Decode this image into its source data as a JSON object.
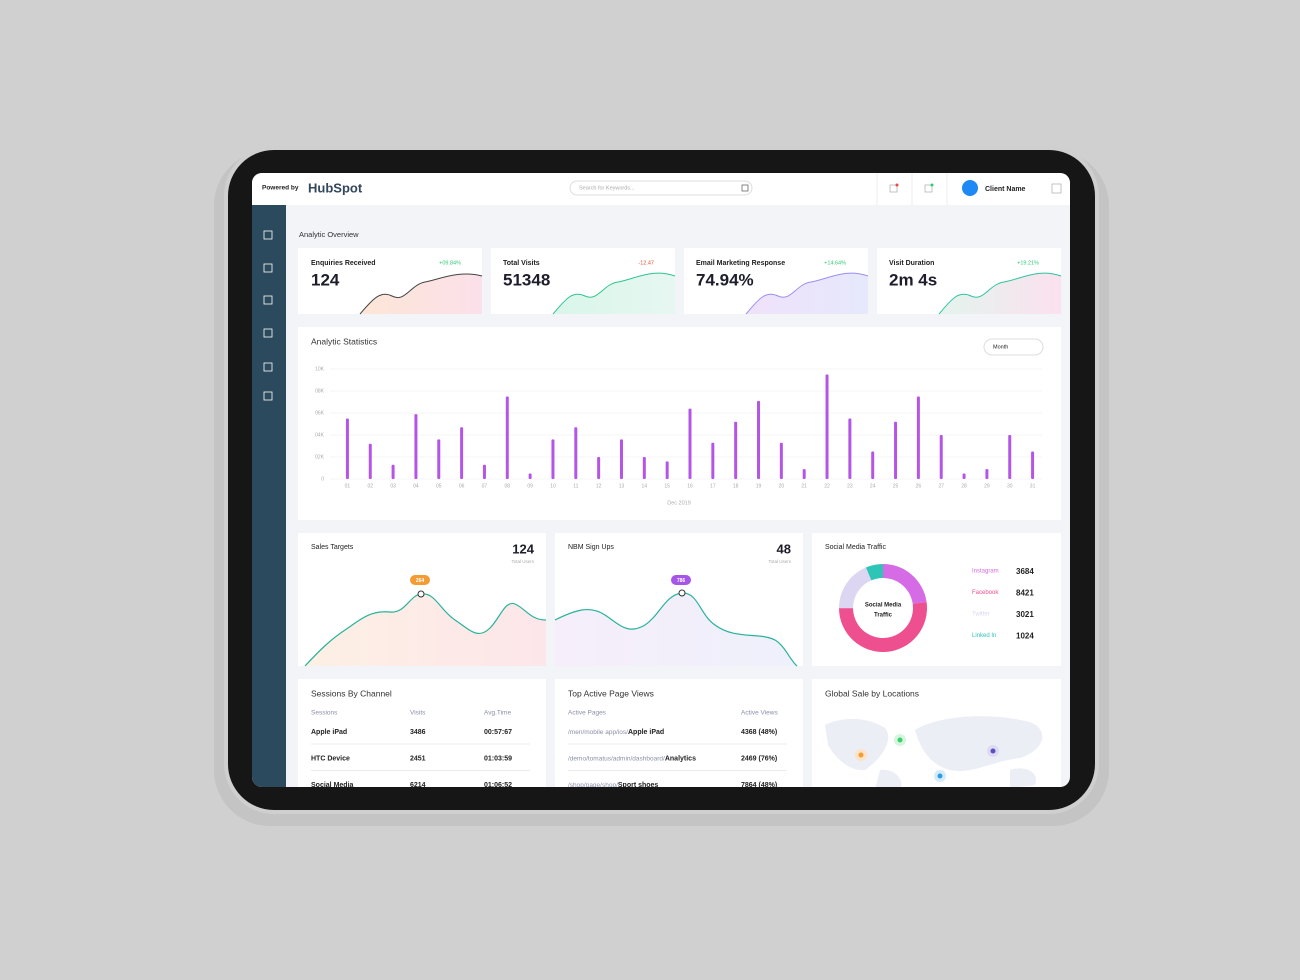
{
  "header": {
    "powered_by": "Powered by",
    "brand": "HubSpot",
    "search_placeholder": "Search for Keywords...",
    "user": "Client Name"
  },
  "overview": {
    "title": "Analytic Overview",
    "cards": [
      {
        "label": "Enquiries Received",
        "value": "124",
        "change": "+09.84%"
      },
      {
        "label": "Total Visits",
        "value": "51348",
        "change": "-12.47"
      },
      {
        "label": "Email Marketing Response",
        "value": "74.94%",
        "change": "+14.64%"
      },
      {
        "label": "Visit Duration",
        "value": "2m 4s",
        "change": "+19.21%"
      }
    ]
  },
  "chart_data": {
    "type": "bar",
    "title": "Analytic Statistics",
    "period": "Month",
    "x_label": "Dec 2019",
    "categories": [
      "01",
      "02",
      "03",
      "04",
      "05",
      "06",
      "07",
      "08",
      "09",
      "10",
      "11",
      "12",
      "13",
      "14",
      "15",
      "16",
      "17",
      "18",
      "19",
      "20",
      "21",
      "22",
      "23",
      "24",
      "25",
      "26",
      "27",
      "28",
      "29",
      "30",
      "31"
    ],
    "values": [
      5500,
      3200,
      1300,
      5900,
      3600,
      4700,
      1300,
      7500,
      500,
      3600,
      4700,
      2000,
      3600,
      2000,
      1600,
      6400,
      3300,
      5200,
      7100,
      3300,
      900,
      9500,
      5500,
      2500,
      5200,
      7500,
      4000,
      500,
      900,
      4000,
      2500
    ],
    "color": "#b455e8",
    "ylim": [
      0,
      10000
    ],
    "yticks": [
      0,
      {
        "value": 2000,
        "label": "02K"
      },
      {
        "value": 4000,
        "label": "04K"
      },
      {
        "value": 6000,
        "label": "06K"
      },
      {
        "value": 8000,
        "label": "08K"
      },
      {
        "value": 10000,
        "label": "10K"
      }
    ],
    "grid": true
  },
  "sales_targets": {
    "title": "Sales Targets",
    "value": "124",
    "caption": "Total Users",
    "badge": "264"
  },
  "signups": {
    "title": "NBM Sign Ups",
    "value": "48",
    "caption": "Total Users",
    "badge": "786"
  },
  "social": {
    "title": "Social Media Traffic",
    "center_label": [
      "Social Media",
      "Traffic"
    ],
    "series": [
      {
        "name": "Instagram",
        "value": 3684,
        "color": "#d66be6"
      },
      {
        "name": "Facebook",
        "value": 8421,
        "color": "#ee4f8f"
      },
      {
        "name": "Twitter",
        "value": 3021,
        "color": "#ddd6f2"
      },
      {
        "name": "Linked In",
        "value": 1024,
        "color": "#2ec4b6"
      }
    ]
  },
  "sessions": {
    "title": "Sessions By Channel",
    "columns": [
      "Sessions",
      "Visits",
      "Avg.Time"
    ],
    "rows": [
      [
        "Apple iPad",
        "3486",
        "00:57:67"
      ],
      [
        "HTC Device",
        "2451",
        "01:03:59"
      ],
      [
        "Social Media",
        "6214",
        "01:06:52"
      ]
    ]
  },
  "pages": {
    "title": "Top Active Page Views",
    "columns": [
      "Active Pages",
      "Active Views"
    ],
    "rows": [
      [
        "/men/mobile app/ios/",
        "Apple iPad",
        "4368 (48%)"
      ],
      [
        "/demo/tomatus/admin/dashboard/",
        "Analytics",
        "2469 (76%)"
      ],
      [
        "/shop/page/shop/",
        "Sport shoes",
        "7864 (48%)"
      ]
    ]
  },
  "map": {
    "title": "Global Sale by Locations"
  }
}
